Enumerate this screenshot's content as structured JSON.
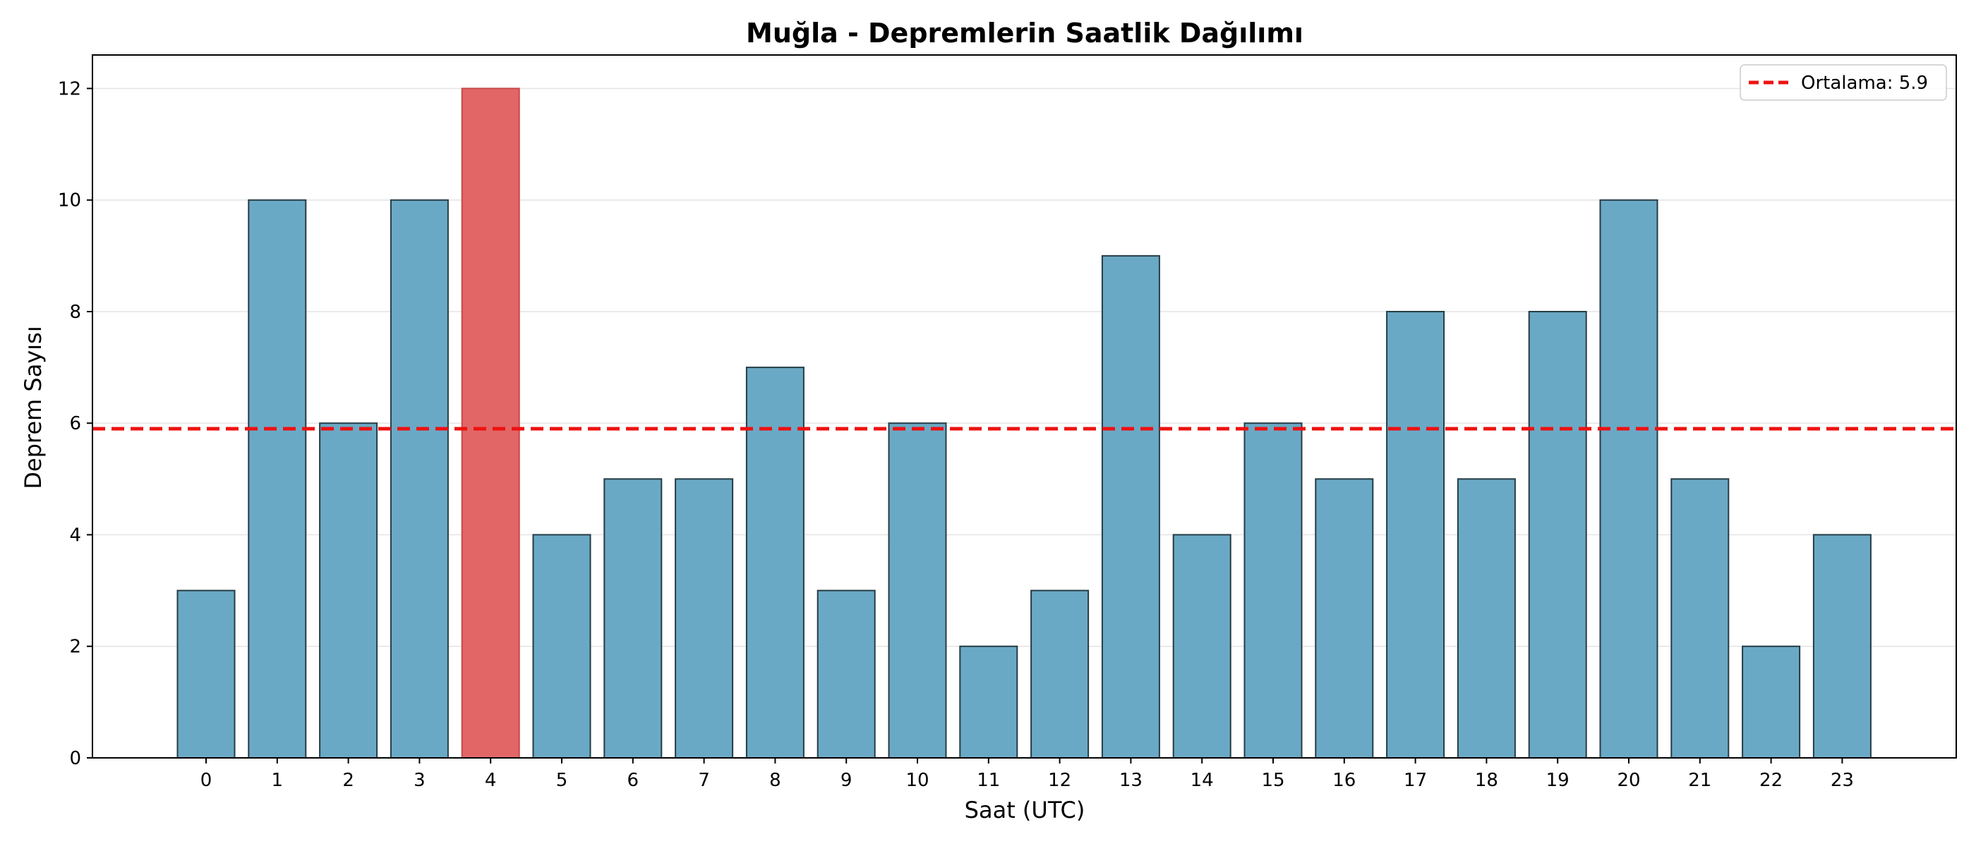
{
  "chart_data": {
    "type": "bar",
    "title": "Muğla - Depremlerin Saatlik Dağılımı",
    "xlabel": "Saat (UTC)",
    "ylabel": "Deprem Sayısı",
    "categories": [
      "0",
      "1",
      "2",
      "3",
      "4",
      "5",
      "6",
      "7",
      "8",
      "9",
      "10",
      "11",
      "12",
      "13",
      "14",
      "15",
      "16",
      "17",
      "18",
      "19",
      "20",
      "21",
      "22",
      "23"
    ],
    "values": [
      3,
      10,
      6,
      10,
      12,
      4,
      5,
      5,
      7,
      3,
      6,
      2,
      3,
      9,
      4,
      6,
      5,
      8,
      5,
      8,
      10,
      5,
      2,
      4
    ],
    "highlight_index": 4,
    "ylim": [
      0,
      12.6
    ],
    "yticks": [
      0,
      2,
      4,
      6,
      8,
      10,
      12
    ],
    "mean_line": {
      "value": 5.9,
      "label": "Ortalama: 5.9",
      "style": "dashed",
      "color": "#ee1111"
    },
    "grid": "y",
    "legend_position": "top-right",
    "colors": {
      "bar": "#6aa9c5",
      "highlight": "#e26666",
      "edge": "#263c45"
    }
  }
}
